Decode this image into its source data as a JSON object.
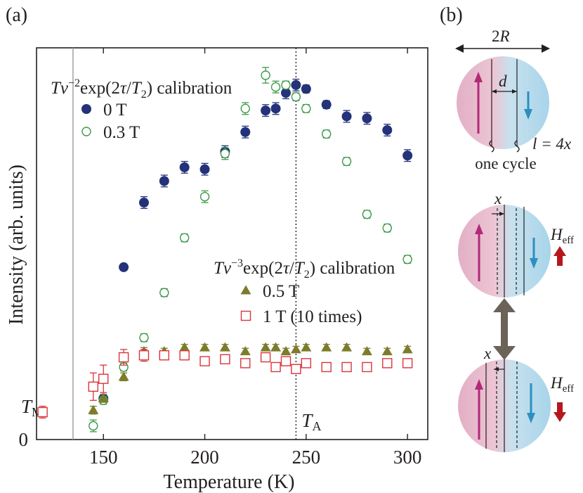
{
  "panel_a_label": "(a)",
  "panel_b_label": "(b)",
  "colors": {
    "zero_t": "#24327a",
    "green": "#3c9a4a",
    "olive": "#7c7c2c",
    "red": "#d8353a",
    "pink": "#b02a78",
    "blue_arrow": "#2b8fbf",
    "field_arrow": "#b5181c",
    "double_arrow": "#6b6258"
  },
  "chart_data": {
    "type": "scatter",
    "xlabel": "Temperature (K)",
    "ylabel": "Intensity (arb. units)",
    "xlim": [
      117,
      310
    ],
    "ylim": [
      0,
      100
    ],
    "xticks": [
      150,
      200,
      250,
      300
    ],
    "yticks": [
      0
    ],
    "x_tick_labels": [
      "150",
      "200",
      "250",
      "300"
    ],
    "y_tick_labels": [
      "0"
    ],
    "grid": false,
    "legend_groups": [
      {
        "title": "Tv⁻²exp(2τ/T₂) calibration",
        "title_parts": [
          "T",
          "v",
          "−2",
          "exp(2",
          "τ",
          "/",
          "T",
          "2",
          ") calibration"
        ],
        "entries": [
          {
            "label": "0 T",
            "series": 0
          },
          {
            "label": "0.3 T",
            "series": 1
          }
        ]
      },
      {
        "title": "Tv⁻³exp(2τ/T₂) calibration",
        "title_parts": [
          "T",
          "v",
          "−3",
          "exp(2",
          "τ",
          "/",
          "T",
          "2",
          ") calibration"
        ],
        "entries": [
          {
            "label": "0.5 T",
            "series": 2
          },
          {
            "label": "1 T (10 times)",
            "series": 3
          }
        ]
      }
    ],
    "series": [
      {
        "name": "0 T",
        "marker": "filled-circle",
        "color": "#24327a",
        "points": [
          {
            "x": 150,
            "y": 10.5,
            "err": 1.0
          },
          {
            "x": 160,
            "y": 44,
            "err": 0.8
          },
          {
            "x": 170,
            "y": 60.5,
            "err": 1.5
          },
          {
            "x": 180,
            "y": 66,
            "err": 1.5
          },
          {
            "x": 190,
            "y": 69.5,
            "err": 1.5
          },
          {
            "x": 200,
            "y": 69,
            "err": 1.5
          },
          {
            "x": 210,
            "y": 73.5,
            "err": 1.5
          },
          {
            "x": 220,
            "y": 78.5,
            "err": 1.5
          },
          {
            "x": 230,
            "y": 84,
            "err": 1.5
          },
          {
            "x": 235,
            "y": 84.5,
            "err": 1.5
          },
          {
            "x": 240,
            "y": 88.5,
            "err": 1.5
          },
          {
            "x": 245,
            "y": 90.5,
            "err": 1.5
          },
          {
            "x": 250,
            "y": 89.5,
            "err": 1.0
          },
          {
            "x": 260,
            "y": 85.5,
            "err": 1.0
          },
          {
            "x": 270,
            "y": 82.5,
            "err": 1.5
          },
          {
            "x": 280,
            "y": 82,
            "err": 1.5
          },
          {
            "x": 290,
            "y": 79,
            "err": 1.5
          },
          {
            "x": 300,
            "y": 72.5,
            "err": 1.5
          }
        ]
      },
      {
        "name": "0.3 T",
        "marker": "open-circle",
        "color": "#3c9a4a",
        "points": [
          {
            "x": 145,
            "y": 3.5,
            "err": 1.5
          },
          {
            "x": 150,
            "y": 10,
            "err": 1.0
          },
          {
            "x": 160,
            "y": 18.5,
            "err": 1.0
          },
          {
            "x": 170,
            "y": 26,
            "err": 1.0
          },
          {
            "x": 180,
            "y": 37.5,
            "err": 1.0
          },
          {
            "x": 190,
            "y": 51.5,
            "err": 1.0
          },
          {
            "x": 200,
            "y": 62,
            "err": 1.5
          },
          {
            "x": 210,
            "y": 73,
            "err": 1.5
          },
          {
            "x": 220,
            "y": 84.5,
            "err": 1.5
          },
          {
            "x": 230,
            "y": 93,
            "err": 2.0
          },
          {
            "x": 235,
            "y": 90,
            "err": 1.5
          },
          {
            "x": 240,
            "y": 90.5,
            "err": 1.0
          },
          {
            "x": 245,
            "y": 87.5,
            "err": 1.0
          },
          {
            "x": 250,
            "y": 84.5,
            "err": 1.0
          },
          {
            "x": 260,
            "y": 78,
            "err": 1.0
          },
          {
            "x": 270,
            "y": 71,
            "err": 1.0
          },
          {
            "x": 280,
            "y": 57.5,
            "err": 1.0
          },
          {
            "x": 290,
            "y": 54,
            "err": 1.0
          },
          {
            "x": 300,
            "y": 46,
            "err": 1.0
          }
        ]
      },
      {
        "name": "0.5 T",
        "marker": "filled-triangle",
        "color": "#7c7c2c",
        "points": [
          {
            "x": 145,
            "y": 7.5,
            "err": 1.0
          },
          {
            "x": 150,
            "y": 10.5,
            "err": 1.0
          },
          {
            "x": 160,
            "y": 16,
            "err": 1.0
          },
          {
            "x": 170,
            "y": 22.5,
            "err": 1.0
          },
          {
            "x": 180,
            "y": 22.5,
            "err": 0.8
          },
          {
            "x": 190,
            "y": 23.5,
            "err": 0.8
          },
          {
            "x": 200,
            "y": 23.5,
            "err": 0.8
          },
          {
            "x": 210,
            "y": 23.5,
            "err": 0.8
          },
          {
            "x": 220,
            "y": 22.5,
            "err": 0.8
          },
          {
            "x": 230,
            "y": 23.5,
            "err": 0.8
          },
          {
            "x": 235,
            "y": 23.5,
            "err": 0.8
          },
          {
            "x": 240,
            "y": 22.5,
            "err": 0.8
          },
          {
            "x": 245,
            "y": 23,
            "err": 0.8
          },
          {
            "x": 250,
            "y": 23.5,
            "err": 0.8
          },
          {
            "x": 260,
            "y": 23.5,
            "err": 0.8
          },
          {
            "x": 270,
            "y": 23.5,
            "err": 0.8
          },
          {
            "x": 280,
            "y": 22.5,
            "err": 0.8
          },
          {
            "x": 290,
            "y": 22.5,
            "err": 0.8
          },
          {
            "x": 300,
            "y": 23,
            "err": 0.8
          }
        ]
      },
      {
        "name": "1 T (10 times)",
        "marker": "open-square",
        "color": "#d8353a",
        "points": [
          {
            "x": 120,
            "y": 7,
            "err": 1.5
          },
          {
            "x": 145,
            "y": 13.5,
            "err": 3.5
          },
          {
            "x": 150,
            "y": 15.5,
            "err": 3.5
          },
          {
            "x": 160,
            "y": 21,
            "err": 2.0
          },
          {
            "x": 170,
            "y": 21.5,
            "err": 1.5
          },
          {
            "x": 180,
            "y": 21.5,
            "err": 1.0
          },
          {
            "x": 190,
            "y": 21.5,
            "err": 1.0
          },
          {
            "x": 200,
            "y": 20,
            "err": 1.0
          },
          {
            "x": 210,
            "y": 20.5,
            "err": 1.0
          },
          {
            "x": 220,
            "y": 19.5,
            "err": 1.0
          },
          {
            "x": 230,
            "y": 21,
            "err": 1.0
          },
          {
            "x": 235,
            "y": 18.5,
            "err": 1.0
          },
          {
            "x": 240,
            "y": 20,
            "err": 1.0
          },
          {
            "x": 245,
            "y": 18,
            "err": 1.0
          },
          {
            "x": 250,
            "y": 19.5,
            "err": 1.0
          },
          {
            "x": 260,
            "y": 18.5,
            "err": 1.0
          },
          {
            "x": 270,
            "y": 18.5,
            "err": 1.0
          },
          {
            "x": 280,
            "y": 18.5,
            "err": 1.0
          },
          {
            "x": 290,
            "y": 19.5,
            "err": 1.0
          },
          {
            "x": 300,
            "y": 19.5,
            "err": 1.0
          }
        ]
      }
    ],
    "reference_lines": [
      {
        "x": 135,
        "style": "solid",
        "color": "#9a9a9a",
        "label_main": "T",
        "label_sub": "M"
      },
      {
        "x": 245,
        "style": "dotted",
        "color": "#231f20",
        "label_main": "T",
        "label_sub": "A"
      }
    ]
  },
  "diagram": {
    "width_label_main": "2",
    "width_label_italic": "R",
    "d_label": "d",
    "one_cycle_label": "one cycle",
    "cycle_relation_label": "l = 4x",
    "x_label": "x",
    "heff_main": "H",
    "heff_sub": "eff",
    "field_up": "up",
    "field_down": "down"
  }
}
